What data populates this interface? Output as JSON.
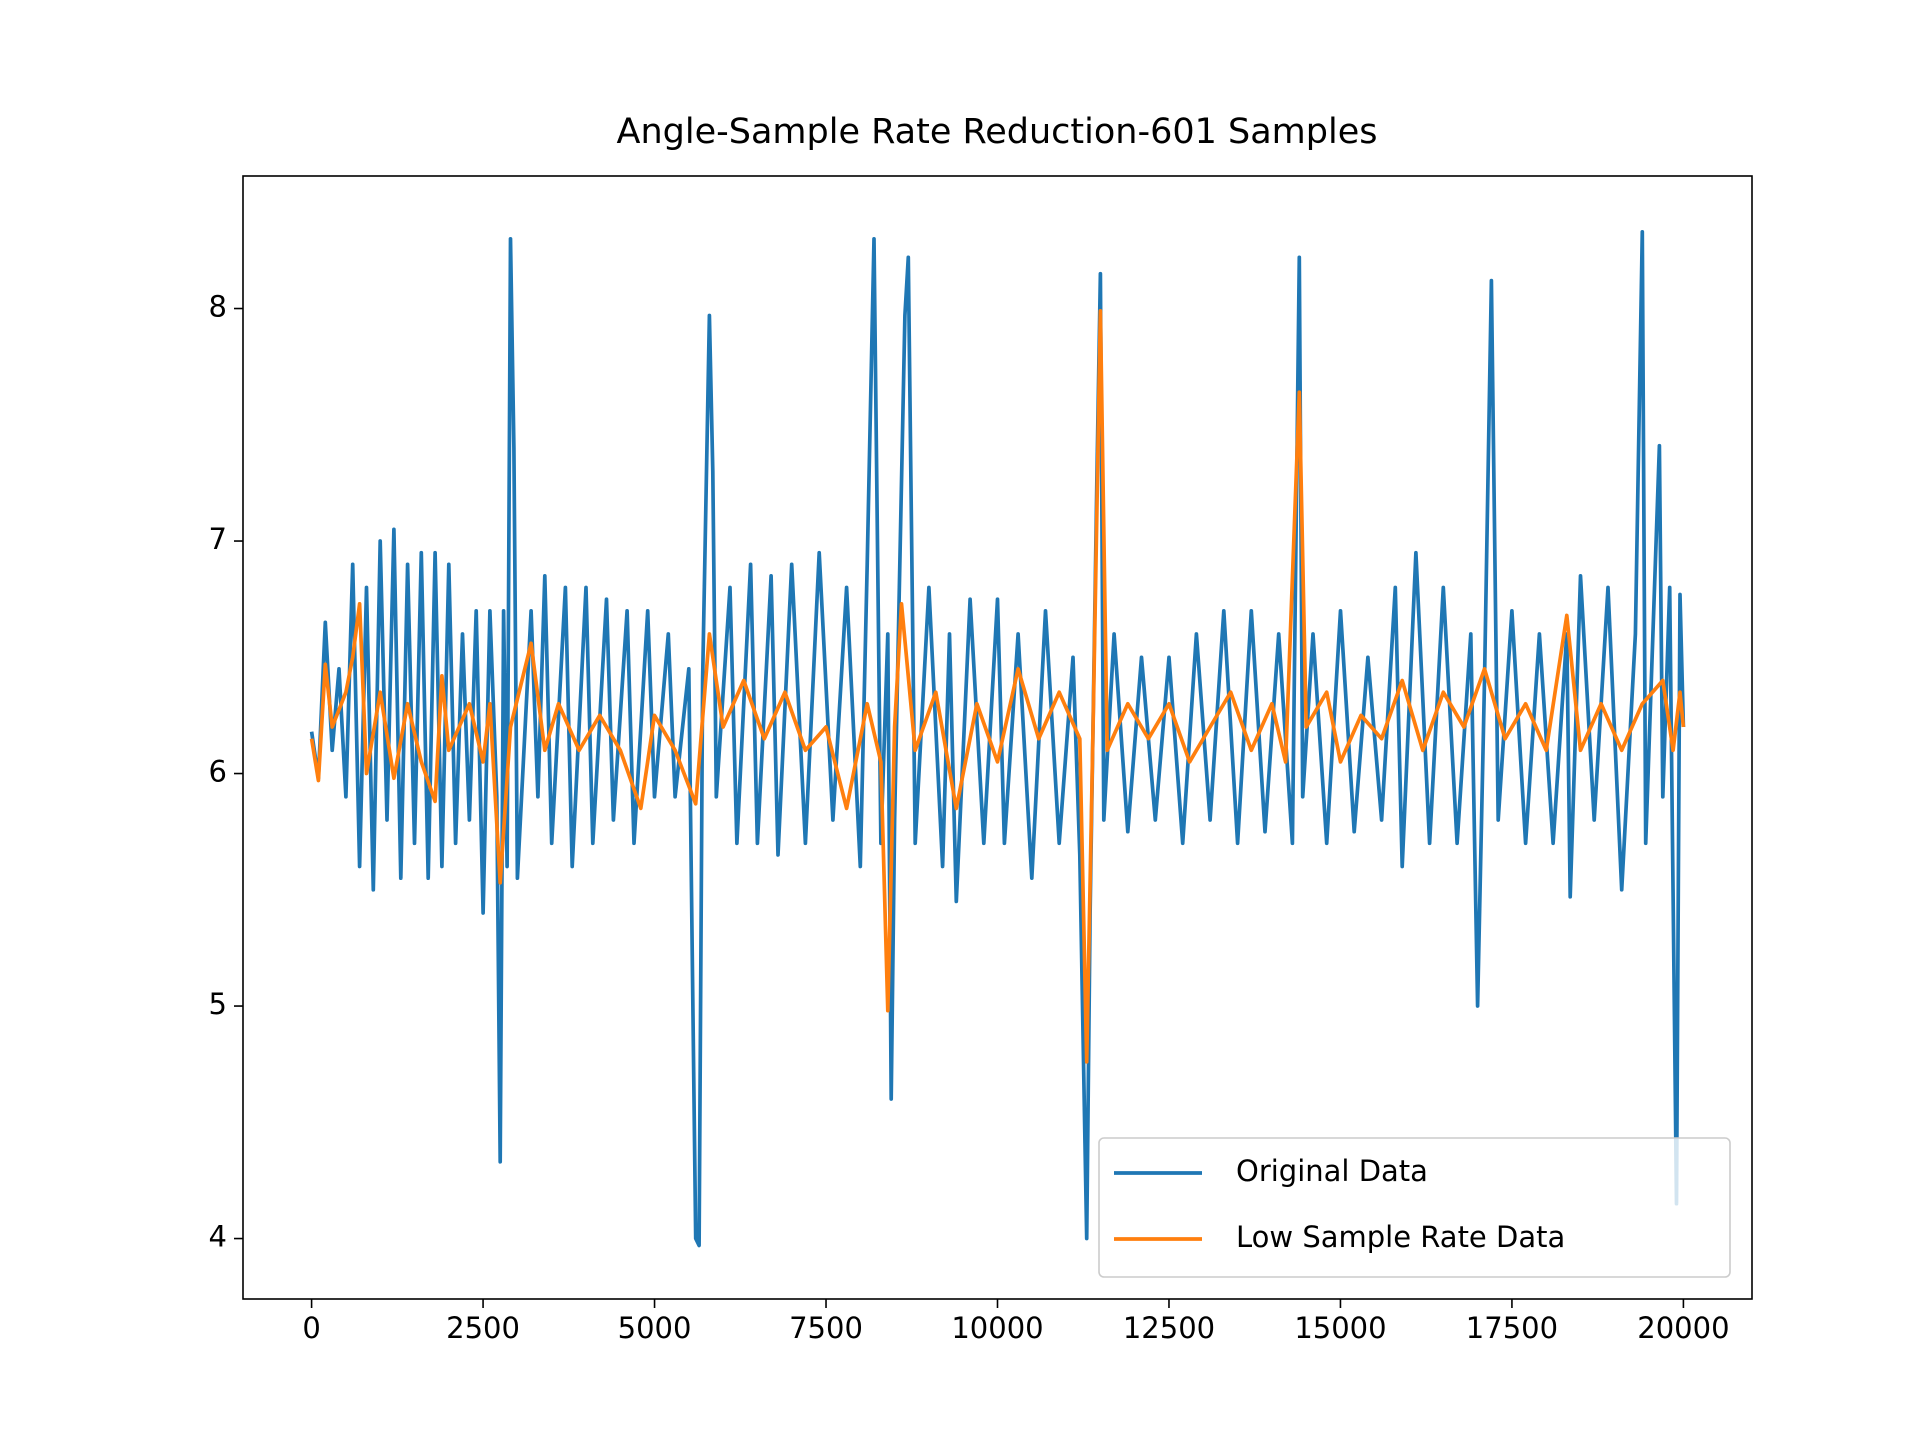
{
  "chart_data": {
    "type": "line",
    "title": "Angle-Sample Rate Reduction-601 Samples",
    "xlim": [
      -1000,
      21000
    ],
    "ylim": [
      3.74,
      8.57
    ],
    "xticks": [
      0,
      2500,
      5000,
      7500,
      10000,
      12500,
      15000,
      17500,
      20000
    ],
    "yticks": [
      4,
      5,
      6,
      7,
      8
    ],
    "legend": "lower right",
    "series": [
      {
        "name": "Original Data",
        "color": "#1f77b4",
        "x": [
          0,
          100,
          200,
          300,
          400,
          500,
          600,
          700,
          800,
          900,
          1000,
          1100,
          1200,
          1300,
          1400,
          1500,
          1600,
          1700,
          1800,
          1900,
          2000,
          2100,
          2200,
          2300,
          2400,
          2500,
          2600,
          2700,
          2750,
          2800,
          2850,
          2900,
          2950,
          3000,
          3200,
          3300,
          3400,
          3500,
          3700,
          3800,
          4000,
          4100,
          4300,
          4400,
          4600,
          4700,
          4900,
          5000,
          5200,
          5300,
          5500,
          5600,
          5650,
          5700,
          5800,
          5850,
          5900,
          6100,
          6200,
          6400,
          6500,
          6700,
          6800,
          7000,
          7200,
          7400,
          7600,
          7800,
          8000,
          8100,
          8200,
          8300,
          8400,
          8450,
          8500,
          8650,
          8700,
          8800,
          9000,
          9200,
          9300,
          9400,
          9600,
          9800,
          10000,
          10100,
          10300,
          10500,
          10700,
          10900,
          11100,
          11200,
          11300,
          11350,
          11450,
          11500,
          11550,
          11700,
          11900,
          12100,
          12300,
          12500,
          12700,
          12900,
          13100,
          13300,
          13500,
          13700,
          13900,
          14100,
          14300,
          14400,
          14450,
          14600,
          14800,
          15000,
          15200,
          15400,
          15600,
          15800,
          15900,
          16100,
          16300,
          16500,
          16700,
          16900,
          17000,
          17100,
          17200,
          17300,
          17500,
          17700,
          17900,
          18100,
          18300,
          18350,
          18500,
          18700,
          18900,
          19100,
          19300,
          19400,
          19450,
          19650,
          19700,
          19800,
          19900,
          19950,
          20000
        ],
        "values": [
          6.18,
          5.98,
          6.65,
          6.1,
          6.45,
          5.9,
          6.9,
          5.6,
          6.8,
          5.5,
          7.0,
          5.8,
          7.05,
          5.55,
          6.9,
          5.7,
          6.95,
          5.55,
          6.95,
          5.6,
          6.9,
          5.7,
          6.6,
          5.8,
          6.7,
          5.4,
          6.7,
          5.9,
          4.33,
          6.7,
          5.6,
          8.3,
          7.4,
          5.55,
          6.7,
          5.9,
          6.85,
          5.7,
          6.8,
          5.6,
          6.8,
          5.7,
          6.75,
          5.8,
          6.7,
          5.7,
          6.7,
          5.9,
          6.6,
          5.9,
          6.45,
          4.0,
          3.97,
          6.4,
          7.97,
          7.3,
          5.9,
          6.8,
          5.7,
          6.9,
          5.7,
          6.85,
          5.65,
          6.9,
          5.7,
          6.95,
          5.8,
          6.8,
          5.6,
          6.9,
          8.3,
          5.7,
          6.6,
          4.6,
          5.8,
          7.97,
          8.22,
          5.7,
          6.8,
          5.6,
          6.6,
          5.45,
          6.75,
          5.7,
          6.75,
          5.7,
          6.6,
          5.55,
          6.7,
          5.7,
          6.5,
          5.65,
          4.0,
          5.4,
          7.3,
          8.15,
          5.8,
          6.6,
          5.75,
          6.5,
          5.8,
          6.5,
          5.7,
          6.6,
          5.8,
          6.7,
          5.7,
          6.7,
          5.75,
          6.6,
          5.7,
          8.22,
          5.9,
          6.6,
          5.7,
          6.7,
          5.75,
          6.5,
          5.8,
          6.8,
          5.6,
          6.95,
          5.7,
          6.8,
          5.7,
          6.6,
          5.0,
          6.4,
          8.12,
          5.8,
          6.7,
          5.7,
          6.6,
          5.7,
          6.6,
          5.47,
          6.85,
          5.8,
          6.8,
          5.5,
          6.6,
          8.33,
          5.7,
          7.41,
          5.9,
          6.8,
          4.15,
          6.77,
          6.2
        ]
      },
      {
        "name": "Low Sample Rate Data",
        "color": "#ff7f0e",
        "x": [
          0,
          100,
          200,
          300,
          500,
          600,
          700,
          800,
          1000,
          1200,
          1400,
          1600,
          1800,
          1900,
          2000,
          2300,
          2500,
          2600,
          2750,
          2900,
          3200,
          3400,
          3600,
          3900,
          4200,
          4500,
          4800,
          5000,
          5300,
          5600,
          5800,
          6000,
          6300,
          6600,
          6900,
          7200,
          7500,
          7800,
          8100,
          8300,
          8400,
          8500,
          8600,
          8800,
          9100,
          9400,
          9700,
          10000,
          10300,
          10600,
          10900,
          11200,
          11300,
          11400,
          11500,
          11600,
          11900,
          12200,
          12500,
          12800,
          13100,
          13400,
          13700,
          14000,
          14200,
          14400,
          14500,
          14800,
          15000,
          15300,
          15600,
          15900,
          16200,
          16500,
          16800,
          17100,
          17400,
          17700,
          18000,
          18300,
          18500,
          18800,
          19100,
          19400,
          19700,
          19850,
          19950,
          20000
        ],
        "values": [
          6.15,
          5.97,
          6.47,
          6.2,
          6.35,
          6.5,
          6.73,
          6.0,
          6.35,
          5.98,
          6.3,
          6.05,
          5.88,
          6.42,
          6.1,
          6.3,
          6.05,
          6.3,
          5.53,
          6.2,
          6.56,
          6.1,
          6.3,
          6.1,
          6.25,
          6.1,
          5.85,
          6.25,
          6.1,
          5.87,
          6.6,
          6.2,
          6.4,
          6.15,
          6.35,
          6.1,
          6.2,
          5.85,
          6.3,
          6.05,
          4.98,
          6.2,
          6.73,
          6.1,
          6.35,
          5.85,
          6.3,
          6.05,
          6.45,
          6.15,
          6.35,
          6.15,
          4.76,
          6.3,
          7.99,
          6.1,
          6.3,
          6.15,
          6.3,
          6.05,
          6.2,
          6.35,
          6.1,
          6.3,
          6.05,
          7.64,
          6.2,
          6.35,
          6.05,
          6.25,
          6.15,
          6.4,
          6.1,
          6.35,
          6.2,
          6.45,
          6.15,
          6.3,
          6.1,
          6.68,
          6.1,
          6.3,
          6.1,
          6.3,
          6.4,
          6.1,
          6.35,
          6.2
        ]
      }
    ]
  }
}
